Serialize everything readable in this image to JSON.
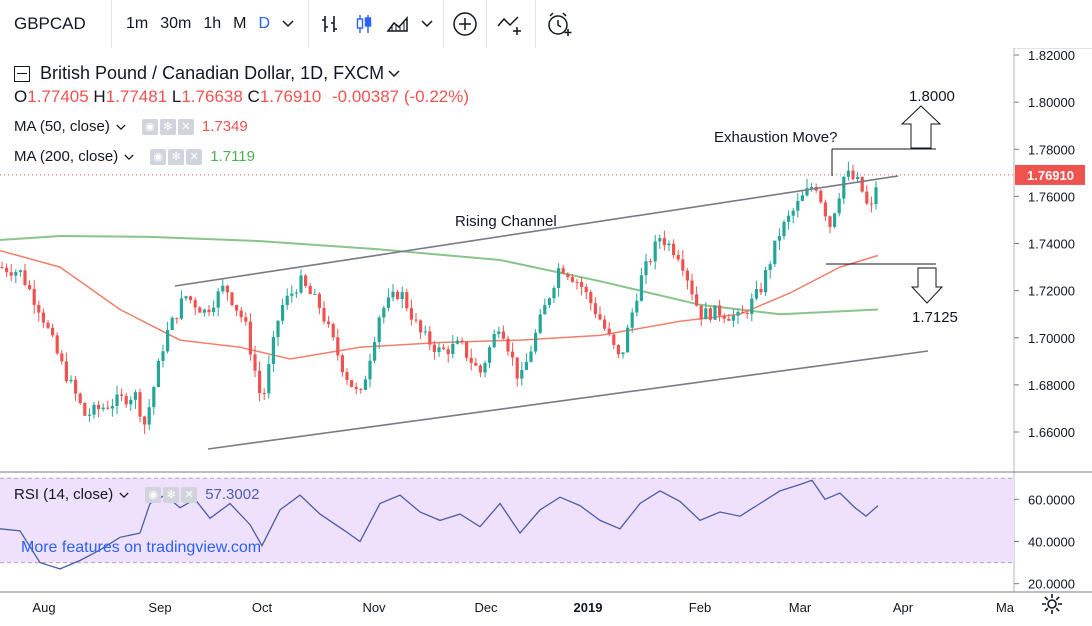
{
  "toolbar": {
    "symbol": "GBPCAD",
    "intervals": [
      "1m",
      "30m",
      "1h",
      "M",
      "D"
    ],
    "active_interval": "D",
    "dropdown_icon": "chevron-down-icon",
    "icons": [
      "bar-style-icon",
      "candles-icon",
      "area-icon",
      "chevron-down-icon",
      "add-indicator-icon",
      "compare-icon",
      "alert-icon"
    ]
  },
  "header": {
    "title": "British Pound / Canadian Dollar, 1D, FXCM",
    "o_label": "O",
    "o_value": "1.77405",
    "h_label": "H",
    "h_value": "1.77481",
    "l_label": "L",
    "l_value": "1.76638",
    "c_label": "C",
    "c_value": "1.76910",
    "change": "-0.00387 (-0.22%)"
  },
  "indicators": {
    "ma50_label": "MA (50, close)",
    "ma50_value": "1.7349",
    "ma200_label": "MA (200, close)",
    "ma200_value": "1.7119",
    "rsi_label": "RSI (14, close)",
    "rsi_value": "57.3002"
  },
  "promo_link": "More features on tradingview.com",
  "colors": {
    "up": "#26a69a",
    "down": "#ef5350",
    "ma50": "#f0806a",
    "ma200": "#8bc48a",
    "trendline": "#787b86",
    "rsi_line": "#4a5ea8",
    "rsi_band": "#efe1fb",
    "price_tag": "#ef5350"
  },
  "chart_data": {
    "type": "candlestick",
    "symbol": "GBPCAD",
    "y_ticks": [
      "1.82000",
      "1.80000",
      "1.78000",
      "1.76000",
      "1.74000",
      "1.72000",
      "1.70000",
      "1.68000",
      "1.66000"
    ],
    "ylim": [
      1.648,
      1.822
    ],
    "last_price": "1.76910",
    "x_labels": [
      "Aug",
      "Sep",
      "Oct",
      "Nov",
      "Dec",
      "2019",
      "Feb",
      "Mar",
      "Apr",
      "Ma"
    ],
    "annotations": {
      "target_up": "1.8000",
      "exhaustion": "Exhaustion Move?",
      "channel": "Rising Channel",
      "target_down": "1.7125"
    },
    "rsi": {
      "y_ticks": [
        "60.0000",
        "40.0000",
        "20.0000"
      ],
      "ylim": [
        17,
        72
      ],
      "band": [
        30,
        70
      ]
    }
  }
}
